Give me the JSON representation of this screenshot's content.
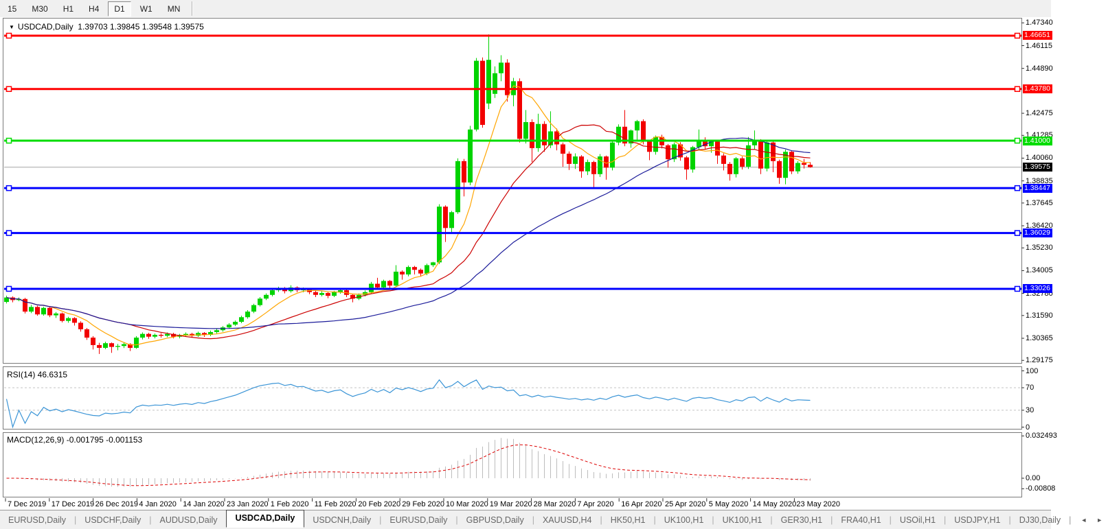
{
  "toolbar": {
    "timeframes": [
      {
        "label": "15",
        "active": false
      },
      {
        "label": "M30",
        "active": false
      },
      {
        "label": "H1",
        "active": false
      },
      {
        "label": "H4",
        "active": false
      },
      {
        "label": "D1",
        "active": true
      },
      {
        "label": "W1",
        "active": false
      },
      {
        "label": "MN",
        "active": false
      }
    ]
  },
  "chart": {
    "dropdown_glyph": "▼",
    "title_symbol": "USDCAD,Daily",
    "title_ohlc": "1.39703 1.39845 1.39548 1.39575"
  },
  "chart_data": {
    "type": "candlestick",
    "symbol": "USDCAD",
    "timeframe": "Daily",
    "last_bar": {
      "open": 1.39703,
      "high": 1.39845,
      "low": 1.39548,
      "close": 1.39575
    },
    "ylim": [
      1.29,
      1.47611
    ],
    "grid": false,
    "price_ticks": [
      "1.47340",
      "1.46115",
      "1.44890",
      "1.42475",
      "1.41285",
      "1.40060",
      "1.38835",
      "1.37645",
      "1.36420",
      "1.35230",
      "1.34005",
      "1.32780",
      "1.31590",
      "1.30365",
      "1.29175"
    ],
    "x_ticks": [
      "7 Dec 2019",
      "17 Dec 2019",
      "26 Dec 2019",
      "4 Jan 2020",
      "14 Jan 2020",
      "23 Jan 2020",
      "1 Feb 2020",
      "11 Feb 2020",
      "20 Feb 2020",
      "29 Feb 2020",
      "10 Mar 2020",
      "19 Mar 2020",
      "28 Mar 2020",
      "7 Apr 2020",
      "16 Apr 2020",
      "25 Apr 2020",
      "5 May 2020",
      "14 May 2020",
      "23 May 2020"
    ],
    "colors": {
      "bull": "#00D300",
      "bear": "#F20000",
      "background": "#FFFFFF"
    },
    "horizontal_lines": [
      {
        "label": "1.46651",
        "price": 1.46651,
        "color": "#FF0000"
      },
      {
        "label": "1.43780",
        "price": 1.4378,
        "color": "#FF0000"
      },
      {
        "label": "1.41000",
        "price": 1.41,
        "color": "#00DC00"
      },
      {
        "label": "1.38447",
        "price": 1.38447,
        "color": "#0000FF"
      },
      {
        "label": "1.36029",
        "price": 1.36029,
        "color": "#0000FF"
      },
      {
        "label": "1.33026",
        "price": 1.33026,
        "color": "#0000FF"
      }
    ],
    "current_price_line": {
      "label": "1.39575",
      "price": 1.39575,
      "line_color": "#C0C0C0",
      "tag_color": "#000000"
    },
    "moving_averages": [
      {
        "name": "fast-ma",
        "period": 8,
        "color": "#FFA500"
      },
      {
        "name": "medium-ma",
        "period": 21,
        "color": "#CC0000"
      },
      {
        "name": "slow-ma",
        "period": 45,
        "color": "#1A1A99"
      }
    ],
    "candles": [
      [
        1.3232,
        1.3266,
        1.3224,
        1.3256
      ],
      [
        1.3256,
        1.3262,
        1.323,
        1.3242
      ],
      [
        1.3242,
        1.3256,
        1.3236,
        1.3248
      ],
      [
        1.3248,
        1.3254,
        1.317,
        1.318
      ],
      [
        1.318,
        1.3216,
        1.3172,
        1.3205
      ],
      [
        1.3205,
        1.3212,
        1.3158,
        1.3165
      ],
      [
        1.3165,
        1.3206,
        1.3158,
        1.32
      ],
      [
        1.32,
        1.3204,
        1.315,
        1.316
      ],
      [
        1.316,
        1.3178,
        1.3146,
        1.317
      ],
      [
        1.317,
        1.3175,
        1.3122,
        1.313
      ],
      [
        1.313,
        1.3152,
        1.312,
        1.3145
      ],
      [
        1.3145,
        1.315,
        1.3105,
        1.312
      ],
      [
        1.312,
        1.3128,
        1.3072,
        1.3085
      ],
      [
        1.3085,
        1.3092,
        1.3028,
        1.304
      ],
      [
        1.304,
        1.3048,
        1.2976,
        1.3
      ],
      [
        1.3,
        1.3012,
        1.2952,
        1.2985
      ],
      [
        1.2985,
        1.3018,
        1.2978,
        1.301
      ],
      [
        1.301,
        1.3014,
        1.2958,
        1.299
      ],
      [
        1.299,
        1.3006,
        1.2972,
        1.2995
      ],
      [
        1.2995,
        1.3016,
        1.2984,
        1.3005
      ],
      [
        1.3005,
        1.301,
        1.2968,
        1.2985
      ],
      [
        1.2985,
        1.3048,
        1.298,
        1.304
      ],
      [
        1.304,
        1.3068,
        1.303,
        1.306
      ],
      [
        1.306,
        1.3066,
        1.3034,
        1.3045
      ],
      [
        1.3045,
        1.3062,
        1.3036,
        1.3055
      ],
      [
        1.3055,
        1.3064,
        1.304,
        1.305
      ],
      [
        1.305,
        1.3068,
        1.3042,
        1.306
      ],
      [
        1.306,
        1.3066,
        1.3036,
        1.3045
      ],
      [
        1.3045,
        1.306,
        1.3036,
        1.3055
      ],
      [
        1.3055,
        1.3068,
        1.3046,
        1.306
      ],
      [
        1.306,
        1.3066,
        1.304,
        1.305
      ],
      [
        1.305,
        1.3072,
        1.3044,
        1.3065
      ],
      [
        1.3065,
        1.307,
        1.3044,
        1.3055
      ],
      [
        1.3055,
        1.3078,
        1.3048,
        1.307
      ],
      [
        1.307,
        1.3088,
        1.3062,
        1.308
      ],
      [
        1.308,
        1.3102,
        1.3072,
        1.3095
      ],
      [
        1.3095,
        1.3118,
        1.3088,
        1.311
      ],
      [
        1.311,
        1.3132,
        1.3102,
        1.3125
      ],
      [
        1.3125,
        1.3158,
        1.3118,
        1.315
      ],
      [
        1.315,
        1.3188,
        1.3142,
        1.318
      ],
      [
        1.318,
        1.3222,
        1.3172,
        1.3215
      ],
      [
        1.3215,
        1.3258,
        1.3208,
        1.325
      ],
      [
        1.325,
        1.3278,
        1.3242,
        1.327
      ],
      [
        1.327,
        1.3302,
        1.3262,
        1.3295
      ],
      [
        1.3295,
        1.3314,
        1.3286,
        1.3305
      ],
      [
        1.3305,
        1.3312,
        1.3278,
        1.329
      ],
      [
        1.329,
        1.3322,
        1.3282,
        1.331
      ],
      [
        1.331,
        1.3316,
        1.3284,
        1.3295
      ],
      [
        1.3295,
        1.331,
        1.3284,
        1.33
      ],
      [
        1.33,
        1.3306,
        1.3274,
        1.3285
      ],
      [
        1.3285,
        1.3292,
        1.3258,
        1.327
      ],
      [
        1.327,
        1.329,
        1.3262,
        1.328
      ],
      [
        1.328,
        1.3286,
        1.3252,
        1.3265
      ],
      [
        1.3265,
        1.3292,
        1.3258,
        1.3285
      ],
      [
        1.3285,
        1.3304,
        1.3276,
        1.3295
      ],
      [
        1.3295,
        1.33,
        1.3258,
        1.327
      ],
      [
        1.327,
        1.3276,
        1.323,
        1.325
      ],
      [
        1.325,
        1.3278,
        1.3242,
        1.327
      ],
      [
        1.327,
        1.3294,
        1.3262,
        1.3285
      ],
      [
        1.3285,
        1.334,
        1.3276,
        1.333
      ],
      [
        1.333,
        1.3362,
        1.33,
        1.331
      ],
      [
        1.331,
        1.3352,
        1.3302,
        1.3345
      ],
      [
        1.3345,
        1.335,
        1.3306,
        1.332
      ],
      [
        1.332,
        1.343,
        1.3312,
        1.3395
      ],
      [
        1.3395,
        1.3402,
        1.3352,
        1.338
      ],
      [
        1.338,
        1.3428,
        1.337,
        1.342
      ],
      [
        1.342,
        1.3426,
        1.338,
        1.3405
      ],
      [
        1.3405,
        1.3412,
        1.3368,
        1.3385
      ],
      [
        1.3385,
        1.3438,
        1.3376,
        1.343
      ],
      [
        1.343,
        1.3448,
        1.342,
        1.3445
      ],
      [
        1.3445,
        1.3758,
        1.3436,
        1.3745
      ],
      [
        1.3745,
        1.3752,
        1.3555,
        1.363
      ],
      [
        1.363,
        1.3722,
        1.3602,
        1.3715
      ],
      [
        1.3715,
        1.4005,
        1.3706,
        1.399
      ],
      [
        1.399,
        1.4002,
        1.38,
        1.3875
      ],
      [
        1.3875,
        1.418,
        1.386,
        1.416
      ],
      [
        1.416,
        1.4545,
        1.415,
        1.453
      ],
      [
        1.453,
        1.4548,
        1.417,
        1.4185
      ],
      [
        1.43,
        1.4672,
        1.427,
        1.4535
      ],
      [
        1.4352,
        1.45,
        1.433,
        1.4463
      ],
      [
        1.4463,
        1.456,
        1.442,
        1.452
      ],
      [
        1.452,
        1.4538,
        1.431,
        1.4345
      ],
      [
        1.4345,
        1.4438,
        1.4285,
        1.442
      ],
      [
        1.442,
        1.4435,
        1.409,
        1.411
      ],
      [
        1.411,
        1.4265,
        1.4085,
        1.42
      ],
      [
        1.42,
        1.4215,
        1.3985,
        1.406
      ],
      [
        1.406,
        1.4245,
        1.404,
        1.419
      ],
      [
        1.419,
        1.4205,
        1.404,
        1.4075
      ],
      [
        1.4075,
        1.4258,
        1.406,
        1.415
      ],
      [
        1.415,
        1.4165,
        1.4048,
        1.408
      ],
      [
        1.408,
        1.409,
        1.396,
        1.403
      ],
      [
        1.403,
        1.4042,
        1.3942,
        1.3975
      ],
      [
        1.3975,
        1.4032,
        1.3948,
        1.4015
      ],
      [
        1.4015,
        1.4022,
        1.39,
        1.3935
      ],
      [
        1.3935,
        1.3998,
        1.3915,
        1.3985
      ],
      [
        1.3985,
        1.3992,
        1.385,
        1.392
      ],
      [
        1.392,
        1.4028,
        1.3905,
        1.4015
      ],
      [
        1.4015,
        1.402,
        1.389,
        1.3955
      ],
      [
        1.3955,
        1.4098,
        1.394,
        1.409
      ],
      [
        1.409,
        1.4188,
        1.4075,
        1.4175
      ],
      [
        1.4175,
        1.4265,
        1.407,
        1.4085
      ],
      [
        1.4085,
        1.416,
        1.4062,
        1.4155
      ],
      [
        1.4155,
        1.4212,
        1.4102,
        1.4205
      ],
      [
        1.4205,
        1.4215,
        1.408,
        1.4095
      ],
      [
        1.4095,
        1.4105,
        1.3995,
        1.404
      ],
      [
        1.404,
        1.4128,
        1.4025,
        1.412
      ],
      [
        1.412,
        1.4132,
        1.4058,
        1.4075
      ],
      [
        1.4075,
        1.4082,
        1.3955,
        1.4
      ],
      [
        1.4,
        1.409,
        1.3985,
        1.408
      ],
      [
        1.408,
        1.4092,
        1.3992,
        1.401
      ],
      [
        1.401,
        1.4018,
        1.389,
        1.3945
      ],
      [
        1.3945,
        1.4072,
        1.3928,
        1.4065
      ],
      [
        1.4065,
        1.416,
        1.4048,
        1.4105
      ],
      [
        1.4105,
        1.4118,
        1.4052,
        1.407
      ],
      [
        1.407,
        1.4102,
        1.4035,
        1.4095
      ],
      [
        1.4095,
        1.41,
        1.3975,
        1.402
      ],
      [
        1.402,
        1.4032,
        1.394,
        1.3975
      ],
      [
        1.3975,
        1.3985,
        1.3885,
        1.392
      ],
      [
        1.392,
        1.4012,
        1.3902,
        1.4005
      ],
      [
        1.4005,
        1.4015,
        1.3945,
        1.396
      ],
      [
        1.396,
        1.412,
        1.3948,
        1.4075
      ],
      [
        1.4075,
        1.4155,
        1.4052,
        1.41
      ],
      [
        1.41,
        1.4108,
        1.392,
        1.395
      ],
      [
        1.395,
        1.4095,
        1.3935,
        1.409
      ],
      [
        1.409,
        1.4098,
        1.393,
        1.399
      ],
      [
        1.399,
        1.3998,
        1.3868,
        1.39
      ],
      [
        1.39,
        1.4052,
        1.3865,
        1.404
      ],
      [
        1.404,
        1.4048,
        1.392,
        1.3935
      ],
      [
        1.3935,
        1.399,
        1.3922,
        1.398
      ],
      [
        1.398,
        1.4002,
        1.395,
        1.397
      ],
      [
        1.39703,
        1.39845,
        1.39548,
        1.39575
      ]
    ],
    "indicators": [
      {
        "name": "RSI",
        "label": "RSI(14) 46.6315",
        "period": 14,
        "value": 46.6315,
        "levels": [
          70,
          30
        ],
        "axis_labels": [
          {
            "text": "100",
            "value": 100
          },
          {
            "text": "70",
            "value": 70
          },
          {
            "text": "30",
            "value": 30
          },
          {
            "text": "0",
            "value": 0
          }
        ],
        "color": "#3A94D6",
        "ylim": [
          0,
          100
        ]
      },
      {
        "name": "MACD",
        "label": "MACD(12,26,9) -0.001795 -0.001153",
        "params": [
          12,
          26,
          9
        ],
        "main_value": -0.001795,
        "signal_value": -0.001153,
        "axis_labels": [
          {
            "text": "0.032493",
            "value": 0.032493
          },
          {
            "text": "0.00",
            "value": 0
          },
          {
            "text": "-0.00808",
            "value": -0.00808
          }
        ],
        "hist_color": "#BDBDBD",
        "signal_color": "#DD0000"
      }
    ]
  },
  "tabs": {
    "items": [
      {
        "label": "EURUSD,Daily",
        "active": false
      },
      {
        "label": "USDCHF,Daily",
        "active": false
      },
      {
        "label": "AUDUSD,Daily",
        "active": false
      },
      {
        "label": "USDCAD,Daily",
        "active": true
      },
      {
        "label": "USDCNH,Daily",
        "active": false
      },
      {
        "label": "EURUSD,Daily",
        "active": false
      },
      {
        "label": "GBPUSD,Daily",
        "active": false
      },
      {
        "label": "XAUUSD,H4",
        "active": false
      },
      {
        "label": "HK50,H1",
        "active": false
      },
      {
        "label": "UK100,H1",
        "active": false
      },
      {
        "label": "UK100,H1",
        "active": false
      },
      {
        "label": "GER30,H1",
        "active": false
      },
      {
        "label": "FRA40,H1",
        "active": false
      },
      {
        "label": "USOil,H1",
        "active": false
      },
      {
        "label": "USDJPY,H1",
        "active": false
      },
      {
        "label": "DJ30,Daily",
        "active": false
      }
    ],
    "scroll_left": "◄",
    "scroll_right": "►"
  }
}
